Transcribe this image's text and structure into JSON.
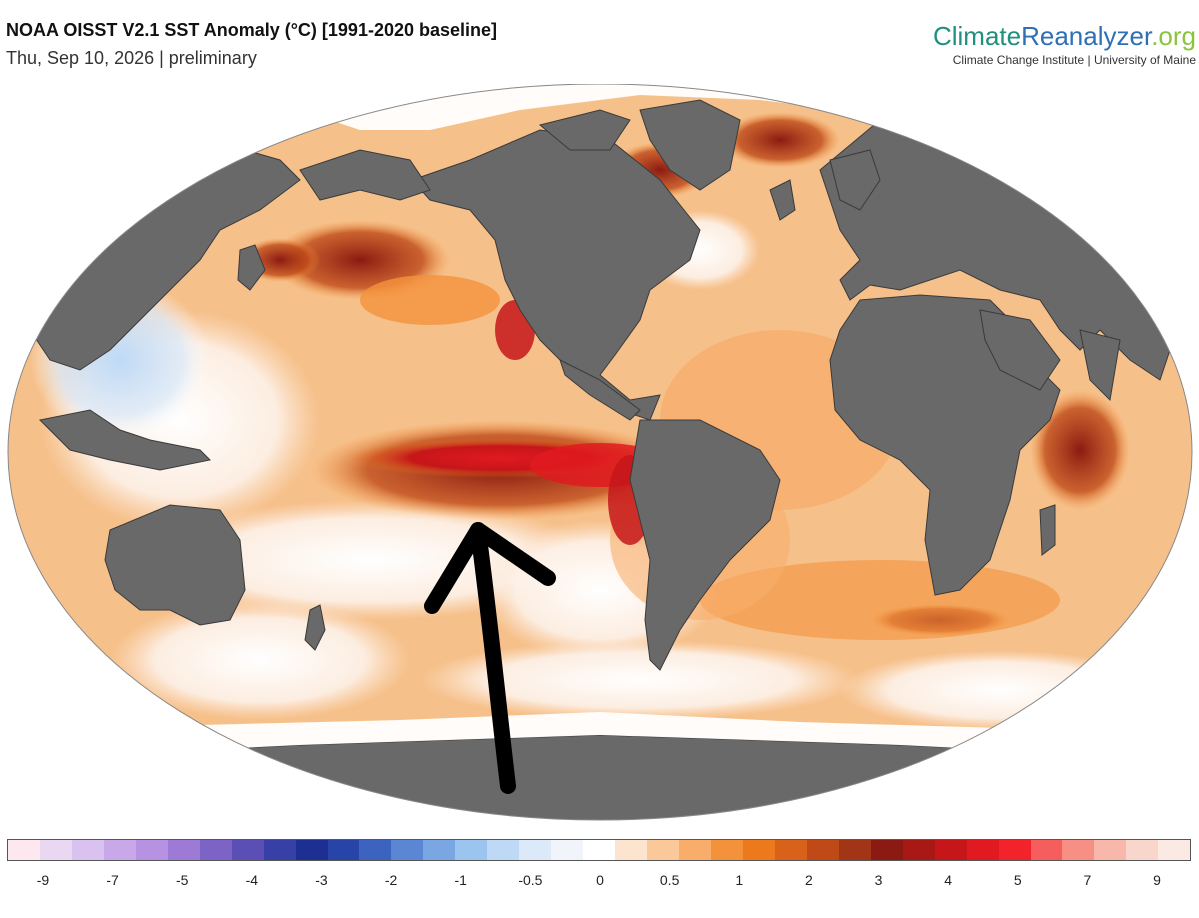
{
  "header": {
    "title": "NOAA OISST V2.1 SST Anomaly (°C) [1991-2020 baseline]",
    "subtitle": "Thu, Sep 10, 2026 | preliminary"
  },
  "brand": {
    "name_part1": "Climate",
    "name_part2": "Reanalyzer",
    "name_part3": ".org",
    "subtitle": "Climate Change Institute | University of Maine"
  },
  "map": {
    "projection": "robinson",
    "land_color": "#696969",
    "sea_ice_color": "#ffffff",
    "ocean_background_color": "#f6c08a",
    "annotation": "black hand-drawn arrow pointing to the equatorial Pacific warm anomaly"
  },
  "colorbar": {
    "colors": [
      "#fde8ef",
      "#ead7f1",
      "#d9c2ef",
      "#c9a8ea",
      "#b792e2",
      "#9c7ad6",
      "#7d63c6",
      "#5b4fb6",
      "#3640a7",
      "#1e2f93",
      "#2745a8",
      "#3c63c0",
      "#5a86d3",
      "#7aa7e2",
      "#9bc4ee",
      "#bed9f5",
      "#dce9f8",
      "#f1f5fb",
      "#ffffff",
      "#fde4cf",
      "#fbc89a",
      "#f8ad6a",
      "#f4923c",
      "#ec7a1c",
      "#d9621a",
      "#bf4a18",
      "#a13516",
      "#8b1a12",
      "#a81815",
      "#c6161a",
      "#e01a20",
      "#f2232a",
      "#f65d5d",
      "#f78f85",
      "#f7b7aa",
      "#f9d6cb",
      "#fbeae4"
    ],
    "tick_labels": [
      "-9",
      "-7",
      "-5",
      "-4",
      "-3",
      "-2",
      "-1",
      "-0.5",
      "0",
      "0.5",
      "1",
      "2",
      "3",
      "4",
      "5",
      "7",
      "9"
    ]
  }
}
